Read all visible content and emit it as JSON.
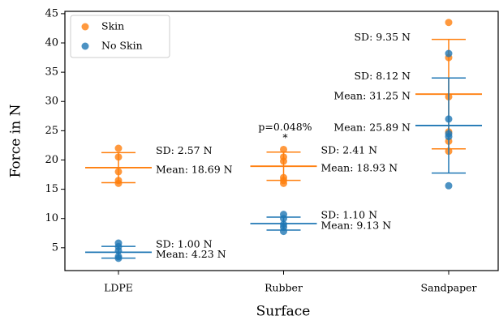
{
  "chart_data": {
    "type": "strip",
    "x_label": "Surface",
    "y_label": "Force in N",
    "categories": [
      "LDPE",
      "Rubber",
      "Sandpaper"
    ],
    "ylim": [
      1.1,
      45.4
    ],
    "yticks": [
      5,
      10,
      15,
      20,
      25,
      30,
      35,
      40,
      45
    ],
    "legend": "upper left",
    "series": [
      {
        "name": "Skin",
        "color": "#ff7f0e",
        "values": [
          [
            22,
            20.5,
            18,
            16.5,
            16
          ],
          [
            21.8,
            20.5,
            19.8,
            17,
            16.5,
            16
          ],
          [
            43.5,
            37.5,
            30.8,
            24.8,
            23.2,
            21.5
          ]
        ],
        "mean": [
          18.69,
          18.93,
          31.25
        ],
        "sd": [
          2.57,
          2.41,
          9.35
        ],
        "mean_labels": [
          "Mean: 18.69 N",
          "Mean: 18.93 N",
          "Mean: 31.25 N"
        ],
        "sd_labels": [
          "SD: 2.57 N",
          "SD: 2.41 N",
          "SD: 9.35 N"
        ]
      },
      {
        "name": "No Skin",
        "color": "#1f77b4",
        "values": [
          [
            5.8,
            5.2,
            4.5,
            3.5,
            3.2
          ],
          [
            10.7,
            10,
            9,
            8.5,
            7.8
          ],
          [
            38.2,
            27,
            24.5,
            24,
            15.6
          ]
        ],
        "mean": [
          4.23,
          9.13,
          25.89
        ],
        "sd": [
          1.0,
          1.1,
          8.12
        ],
        "mean_labels": [
          "Mean: 4.23 N",
          "Mean: 9.13 N",
          "Mean: 25.89 N"
        ],
        "sd_labels": [
          "SD: 1.00 N",
          "SD: 1.10 N",
          "SD: 8.12 N"
        ]
      }
    ],
    "annotations": [
      {
        "text": "p=0.048%",
        "category": 1
      },
      {
        "text": "*",
        "category": 1
      }
    ]
  }
}
